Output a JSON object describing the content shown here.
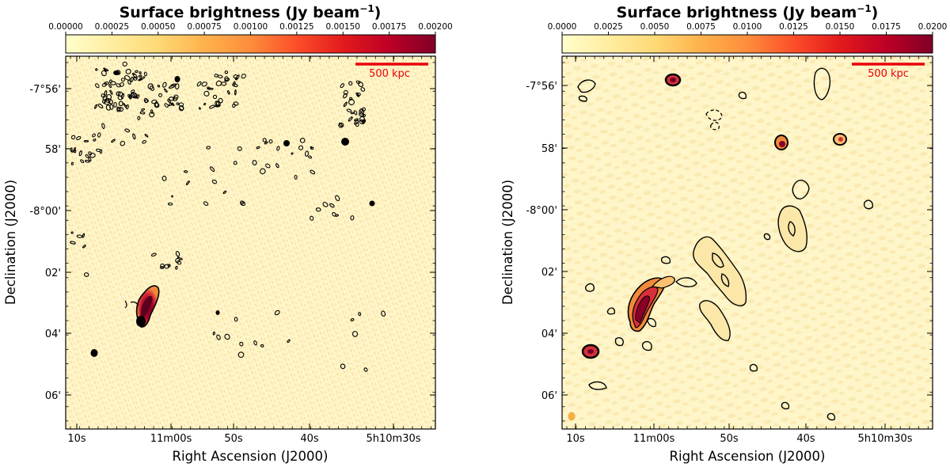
{
  "chart_data": [
    {
      "type": "heatmap",
      "panel": "left",
      "colorbar": {
        "title": "Surface brightness (Jy beam$^{-1}$)",
        "title_main": "Surface brightness (Jy beam",
        "title_sup": "−1",
        "title_close": ")",
        "min": 0.0,
        "max": 0.002,
        "ticks": [
          "0.00000",
          "0.00025",
          "0.00050",
          "0.00075",
          "0.00100",
          "0.00125",
          "0.00150",
          "0.00175",
          "0.00200"
        ],
        "colormap": "YlOrRd"
      },
      "xlabel": "Right Ascension (J2000)",
      "ylabel": "Declination (J2000)",
      "xticks": [
        "10s",
        "11m00s",
        "50s",
        "40s",
        "5h10m30s"
      ],
      "yticks": [
        "-7°56'",
        "58'",
        "-8°00'",
        "02'",
        "04'",
        "06'"
      ],
      "scalebar": {
        "label": "500 kpc",
        "color": "#e8000b"
      },
      "contours": "black"
    },
    {
      "type": "heatmap",
      "panel": "right",
      "colorbar": {
        "title": "Surface brightness (Jy beam$^{-1}$)",
        "title_main": "Surface brightness (Jy beam",
        "title_sup": "−1",
        "title_close": ")",
        "min": 0.0,
        "max": 0.02,
        "ticks": [
          "0.0000",
          "0.0025",
          "0.0050",
          "0.0075",
          "0.0100",
          "0.0125",
          "0.0150",
          "0.0175",
          "0.0200"
        ],
        "colormap": "YlOrRd"
      },
      "xlabel": "Right Ascension (J2000)",
      "ylabel": "Declination (J2000)",
      "xticks": [
        "10s",
        "11m00s",
        "50s",
        "40s",
        "5h10m30s"
      ],
      "yticks": [
        "-7°56'",
        "58'",
        "-8°00'",
        "02'",
        "04'",
        "06'"
      ],
      "scalebar": {
        "label": "500 kpc",
        "color": "#e8000b"
      },
      "contours": "black"
    }
  ],
  "colors": {
    "map_background": "#fef5c8",
    "speckle": "#f6d690",
    "emission_mid": "#f08a3a",
    "emission_high": "#c8123a",
    "emission_peak": "#6e0026",
    "contour": "#000000",
    "scalebar": "#e8000b",
    "beam": "#f4b040"
  }
}
